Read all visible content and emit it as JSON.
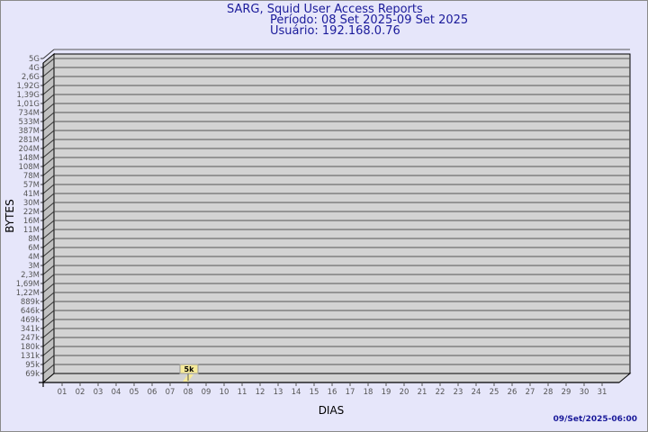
{
  "chart_data": {
    "type": "bar",
    "title": "SARG, Squid User Access Reports",
    "subtitle_period": "Período: 08 Set 2025-09 Set 2025",
    "subtitle_user": "Usuário: 192.168.0.76",
    "xlabel": "DIAS",
    "ylabel": "BYTES",
    "y_scale": "log",
    "grid": true,
    "categories": [
      "01",
      "02",
      "03",
      "04",
      "05",
      "06",
      "07",
      "08",
      "09",
      "10",
      "11",
      "12",
      "13",
      "14",
      "15",
      "16",
      "17",
      "18",
      "19",
      "20",
      "21",
      "22",
      "23",
      "24",
      "25",
      "26",
      "27",
      "28",
      "29",
      "30",
      "31"
    ],
    "y_ticks": [
      "5G",
      "4G",
      "2,6G",
      "1,92G",
      "1,39G",
      "1,01G",
      "734M",
      "533M",
      "387M",
      "281M",
      "204M",
      "148M",
      "108M",
      "78M",
      "57M",
      "41M",
      "30M",
      "22M",
      "16M",
      "11M",
      "8M",
      "6M",
      "4M",
      "3M",
      "2,3M",
      "1,69M",
      "1,22M",
      "889k",
      "646k",
      "469k",
      "341k",
      "247k",
      "180k",
      "131k",
      "95k",
      "69k"
    ],
    "series": [
      {
        "points": [
          {
            "x": "08",
            "value": 5000,
            "label": "5k"
          }
        ]
      }
    ],
    "colors": {
      "plot_bg": "#d3d3d3",
      "side_wall": "#c0c0c0",
      "bar": "#f7eb9a",
      "text": "#1a1a9a"
    }
  },
  "footer": {
    "timestamp": "09/Set/2025-06:00"
  }
}
